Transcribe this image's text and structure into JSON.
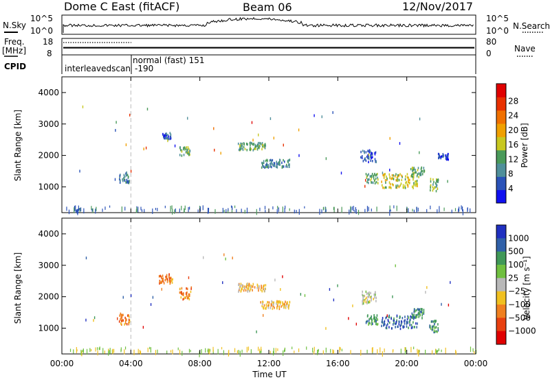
{
  "header": {
    "title": "Dome C East (fitACF)",
    "beam": "Beam 06",
    "date": "12/Nov/2017"
  },
  "nsky_panel": {
    "left_label": "N.Sky",
    "left_ticks": [
      "10^5",
      "10^0"
    ],
    "right_label": "N.Search",
    "right_ticks": [
      "10^5",
      "10^0"
    ]
  },
  "freq_panel": {
    "left_label_1": "Freq.",
    "left_label_2": "[MHz]",
    "left_ticks": [
      "18",
      "8"
    ],
    "right_label": "Nave",
    "right_ticks": [
      "80",
      "0"
    ]
  },
  "cpid_panel": {
    "label": "CPID",
    "mode_1": "interleavedscan",
    "mode_2": "normal (fast) 151",
    "mode_2_sub": "-190"
  },
  "panels": {
    "power": {
      "ylabel": "Slant Range [km]",
      "colorbar_label": "Power [dB]"
    },
    "velocity": {
      "ylabel": "Slant Range [km]",
      "colorbar_label": "Velocity [m s⁻¹]"
    }
  },
  "chart_data": [
    {
      "type": "heatmap",
      "name": "power",
      "x_range_hours": [
        0,
        24
      ],
      "y_range_km": [
        180,
        4500
      ],
      "yticks": [
        "1000",
        "2000",
        "3000",
        "4000"
      ],
      "xticks": [
        "00:00",
        "04:00",
        "08:00",
        "12:00",
        "16:00",
        "20:00",
        "00:00"
      ],
      "xlabel": "Time UT",
      "colorbar": {
        "ticks": [
          "4",
          "8",
          "12",
          "16",
          "20",
          "24",
          "28"
        ],
        "colors": [
          "#1010f0",
          "#2a52b8",
          "#4f8f9a",
          "#4a9a5a",
          "#c8c820",
          "#f0a000",
          "#f07000",
          "#e83000",
          "#e00000"
        ]
      },
      "patches": [
        {
          "t0": 3.3,
          "t1": 3.9,
          "r0": 1150,
          "r1": 1500,
          "c": 2
        },
        {
          "t0": 5.8,
          "t1": 6.3,
          "r0": 2550,
          "r1": 2750,
          "c": 1
        },
        {
          "t0": 6.8,
          "t1": 7.4,
          "r0": 2000,
          "r1": 2300,
          "c": 3
        },
        {
          "t0": 10.2,
          "t1": 11.8,
          "r0": 2200,
          "r1": 2450,
          "c": 3
        },
        {
          "t0": 11.5,
          "t1": 13.2,
          "r0": 1650,
          "r1": 1900,
          "c": 2
        },
        {
          "t0": 17.6,
          "t1": 18.3,
          "r0": 1150,
          "r1": 1450,
          "c": 3
        },
        {
          "t0": 18.5,
          "t1": 20.6,
          "r0": 1000,
          "r1": 1450,
          "c": 4
        },
        {
          "t0": 20.2,
          "t1": 21.0,
          "r0": 1350,
          "r1": 1650,
          "c": 3
        },
        {
          "t0": 21.3,
          "t1": 21.8,
          "r0": 900,
          "r1": 1300,
          "c": 3
        },
        {
          "t0": 17.3,
          "t1": 18.2,
          "r0": 1800,
          "r1": 2200,
          "c": 1
        },
        {
          "t0": 21.8,
          "t1": 22.4,
          "r0": 1900,
          "r1": 2100,
          "c": 1
        }
      ]
    },
    {
      "type": "heatmap",
      "name": "velocity",
      "x_range_hours": [
        0,
        24
      ],
      "y_range_km": [
        180,
        4500
      ],
      "yticks": [
        "1000",
        "2000",
        "3000",
        "4000"
      ],
      "xticks": [
        "00:00",
        "04:00",
        "08:00",
        "12:00",
        "16:00",
        "20:00",
        "00:00"
      ],
      "xlabel": "Time UT",
      "colorbar": {
        "ticks": [
          "1000",
          "500",
          "100",
          "25",
          "−25",
          "−100",
          "−500",
          "−1000"
        ],
        "colors": [
          "#2030c0",
          "#3060a8",
          "#409858",
          "#70c040",
          "#b8b8b8",
          "#f0c020",
          "#f08020",
          "#e84010",
          "#e00000"
        ]
      },
      "patches": [
        {
          "t0": 3.3,
          "t1": 3.9,
          "r0": 1150,
          "r1": 1500,
          "c": 6
        },
        {
          "t0": 5.6,
          "t1": 6.4,
          "r0": 2450,
          "r1": 2750,
          "c": 6
        },
        {
          "t0": 6.8,
          "t1": 7.5,
          "r0": 1950,
          "r1": 2350,
          "c": 6
        },
        {
          "t0": 10.2,
          "t1": 11.8,
          "r0": 2200,
          "r1": 2450,
          "c": 5
        },
        {
          "t0": 11.5,
          "t1": 13.2,
          "r0": 1650,
          "r1": 1900,
          "c": 5
        },
        {
          "t0": 17.6,
          "t1": 18.3,
          "r0": 1150,
          "r1": 1450,
          "c": 2
        },
        {
          "t0": 18.5,
          "t1": 20.6,
          "r0": 1000,
          "r1": 1450,
          "c": 1
        },
        {
          "t0": 20.2,
          "t1": 21.0,
          "r0": 1350,
          "r1": 1650,
          "c": 2
        },
        {
          "t0": 21.3,
          "t1": 21.8,
          "r0": 900,
          "r1": 1300,
          "c": 2
        },
        {
          "t0": 17.3,
          "t1": 18.2,
          "r0": 1800,
          "r1": 2200,
          "c": 4
        }
      ]
    }
  ]
}
